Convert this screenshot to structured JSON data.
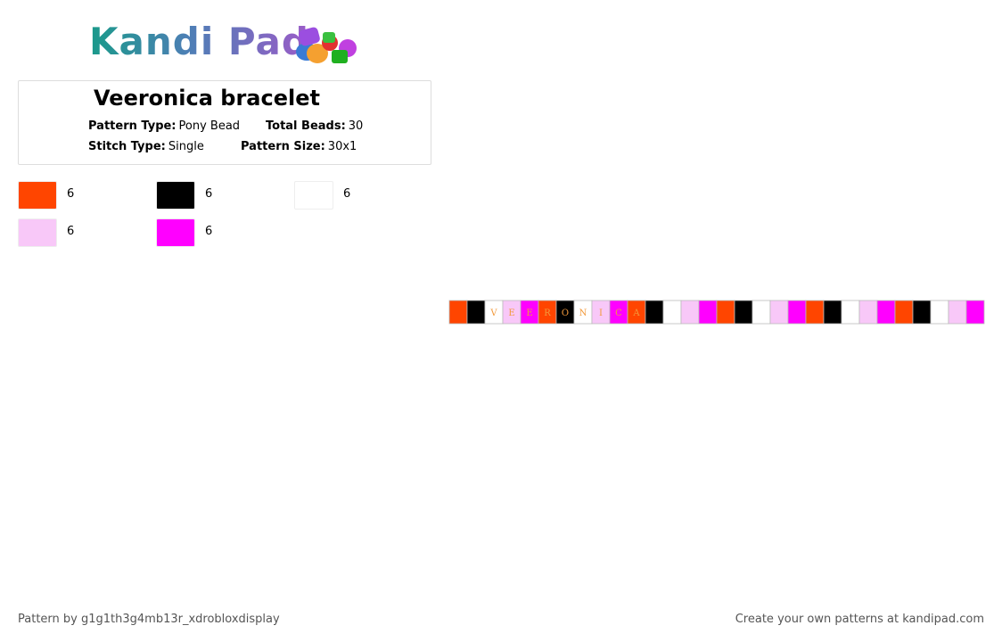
{
  "logo": {
    "text": "Kandi Pad"
  },
  "header": {
    "title": "Veeronica bracelet"
  },
  "info": {
    "pattern_type": {
      "label": "Pattern Type:",
      "value": "Pony Bead"
    },
    "total_beads": {
      "label": "Total Beads:",
      "value": "30"
    },
    "stitch_type": {
      "label": "Stitch Type:",
      "value": "Single"
    },
    "pattern_size": {
      "label": "Pattern Size:",
      "value": "30x1"
    }
  },
  "legend": [
    {
      "color": "#ff4500",
      "count": "6"
    },
    {
      "color": "#000000",
      "count": "6"
    },
    {
      "color": "#ffffff",
      "count": "6"
    },
    {
      "color": "#f8c8f8",
      "count": "6"
    },
    {
      "color": "#ff00ff",
      "count": "6"
    }
  ],
  "pattern": {
    "letter_color": "#f29a3c",
    "beads": [
      {
        "color": "#ff4500"
      },
      {
        "color": "#000000"
      },
      {
        "color": "#ffffff",
        "label": "V"
      },
      {
        "color": "#f8c8f8",
        "label": "E"
      },
      {
        "color": "#ff00ff",
        "label": "E"
      },
      {
        "color": "#ff4500",
        "label": "R"
      },
      {
        "color": "#000000",
        "label": "O"
      },
      {
        "color": "#ffffff",
        "label": "N"
      },
      {
        "color": "#f8c8f8",
        "label": "I"
      },
      {
        "color": "#ff00ff",
        "label": "C"
      },
      {
        "color": "#ff4500",
        "label": "A"
      },
      {
        "color": "#000000"
      },
      {
        "color": "#ffffff"
      },
      {
        "color": "#f8c8f8"
      },
      {
        "color": "#ff00ff"
      },
      {
        "color": "#ff4500"
      },
      {
        "color": "#000000"
      },
      {
        "color": "#ffffff"
      },
      {
        "color": "#f8c8f8"
      },
      {
        "color": "#ff00ff"
      },
      {
        "color": "#ff4500"
      },
      {
        "color": "#000000"
      },
      {
        "color": "#ffffff"
      },
      {
        "color": "#f8c8f8"
      },
      {
        "color": "#ff00ff"
      },
      {
        "color": "#ff4500"
      },
      {
        "color": "#000000"
      },
      {
        "color": "#ffffff"
      },
      {
        "color": "#f8c8f8"
      },
      {
        "color": "#ff00ff"
      }
    ]
  },
  "footer": {
    "left": "Pattern by g1g1th3g4mb13r_xdrobloxdisplay",
    "right": "Create your own patterns at kandipad.com"
  }
}
